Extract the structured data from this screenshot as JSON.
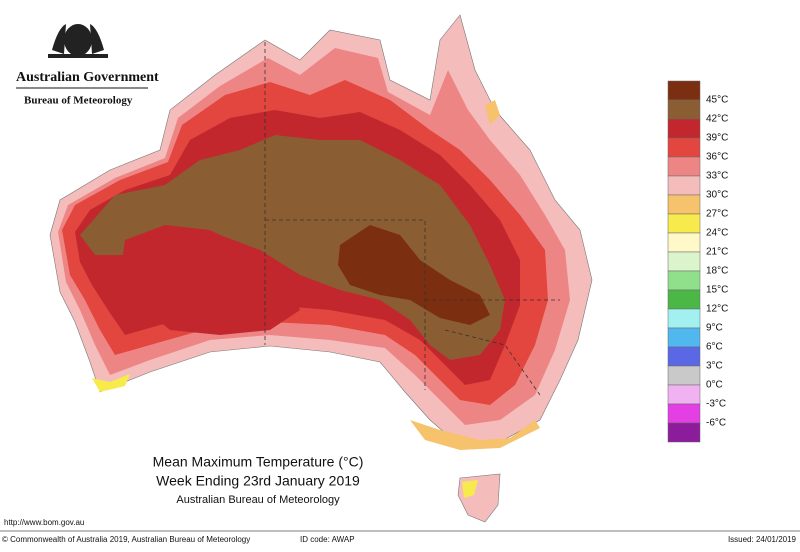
{
  "header": {
    "agency": "Australian Government",
    "bureau": "Bureau of Meteorology"
  },
  "map": {
    "title": "Mean Maximum Temperature (°C)",
    "subtitle": "Week Ending 23rd January 2019",
    "source": "Australian Bureau of Meteorology"
  },
  "legend": {
    "colors": [
      "#7b2f10",
      "#8b5d33",
      "#c1272d",
      "#e2463f",
      "#ee8585",
      "#f5bcbc",
      "#f6c36c",
      "#f6ea4c",
      "#fff8c8",
      "#dbf4cc",
      "#8fdf8b",
      "#4bb746",
      "#a3f0f0",
      "#50b7ef",
      "#5a68e6",
      "#c9c9c9",
      "#f0b2f0",
      "#e43fe4",
      "#8c1c9c"
    ],
    "labels": [
      "45°C",
      "42°C",
      "39°C",
      "36°C",
      "33°C",
      "30°C",
      "27°C",
      "24°C",
      "21°C",
      "18°C",
      "15°C",
      "12°C",
      "9°C",
      "6°C",
      "3°C",
      "0°C",
      "-3°C",
      "-6°C"
    ]
  },
  "footer": {
    "url": "http://www.bom.gov.au",
    "copyright": "© Commonwealth of Australia 2019, Australian Bureau of Meteorology",
    "id_code": "ID code: AWAP",
    "issued": "Issued: 24/01/2019"
  }
}
